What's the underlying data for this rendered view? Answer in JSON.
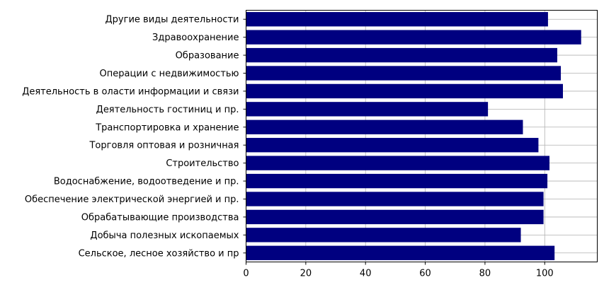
{
  "colors": {
    "bar": "#000080",
    "grid": "#b0b0b0",
    "axis": "#000000"
  },
  "chart_data": {
    "type": "bar",
    "orientation": "horizontal",
    "title": "",
    "xlabel": "",
    "ylabel": "",
    "grid": true,
    "xlim": [
      0,
      117.6
    ],
    "xticks": [
      0,
      20,
      40,
      60,
      80,
      100
    ],
    "xtick_labels": [
      "0",
      "20",
      "40",
      "60",
      "80",
      "100"
    ],
    "categories": [
      "Сельское, лесное хозяйство и пр",
      "Добыча полезных ископаемых",
      "Обрабатывающие производства",
      "Обеспечение электрической энергией и пр.",
      "Водоснабжение, водоотведение и пр.",
      "Строительство",
      "Торговля оптовая и розничная",
      "Транспортировка и хранение",
      "Деятельность гостиниц и пр.",
      "Деятельность в оласти информации и связи",
      "Операции с недвижимостью",
      "Образование",
      "Здравоохранение",
      "Другие виды деятельности"
    ],
    "values": [
      103.3,
      92.0,
      99.6,
      99.6,
      100.9,
      101.6,
      97.9,
      92.7,
      81.0,
      106.1,
      105.4,
      104.2,
      112.2,
      101.1
    ]
  }
}
